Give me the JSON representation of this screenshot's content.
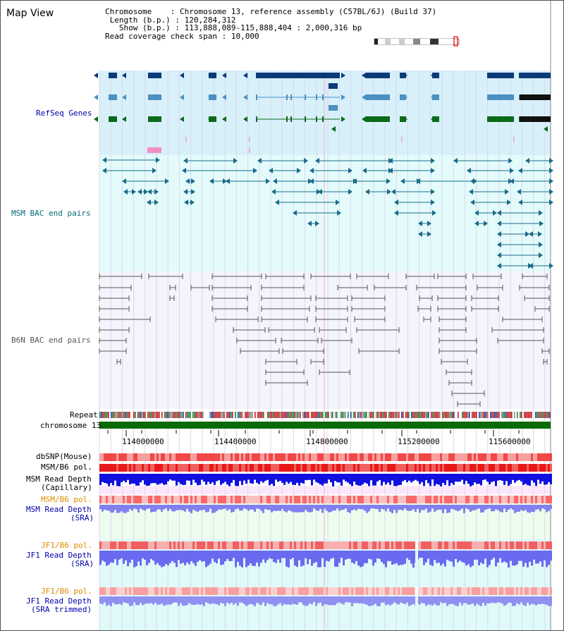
{
  "title": "Map View",
  "info": {
    "chromosome_label": "Chromosome",
    "chromosome_value": "Chromosome 13, reference assembly (C57BL/6J) (Build 37)",
    "length_label": "Length (b.p.)",
    "length_value": "120,284,312",
    "show_label": "Show (b.p.)",
    "show_value": "113,888,089-115,888,404 : 2,000,316 bp",
    "coverage_label": "Read coverage check span",
    "coverage_value": "10,000"
  },
  "tracks": {
    "refseq": "RefSeq Genes",
    "msm_bac": "MSM BAC end pairs",
    "b6n_bac": "B6N BAC end pairs",
    "repeat": "Repeat",
    "chromosome": "chromosome 13",
    "dbsnp": "dbSNP(Mouse)",
    "msm_b6_pol_1": "MSM/B6 pol.",
    "msm_read_depth_cap": "MSM Read Depth",
    "msm_read_depth_cap_sub": "(Capillary)",
    "msm_b6_pol_2": "MSM/B6 pol.",
    "msm_read_depth_sra": "MSM Read Depth",
    "msm_read_depth_sra_sub": "(SRA)",
    "jf1_b6_pol_1": "JF1/B6 pol.",
    "jf1_read_depth_sra": "JF1 Read Depth",
    "jf1_read_depth_sra_sub": "(SRA)",
    "jf1_b6_pol_2": "JF1/B6 pol.",
    "jf1_read_depth_trim": "JF1 Read Depth",
    "jf1_read_depth_trim_sub": "(SRA trimmed)"
  },
  "axis": {
    "ticks": [
      "114000000",
      "114400000",
      "114800000",
      "115200000",
      "115600000"
    ]
  },
  "colors": {
    "refseq_bg": "#d8f0fa",
    "msm_bg": "#e4fbfb",
    "b6n_bg": "#f4f4fc",
    "sra_bg": "#eefcee",
    "jf1_bg": "#e0fafa",
    "gene_dark": "#0a3a78",
    "gene_mid": "#4a90c0",
    "gene_green": "#0a6a1a",
    "bac_teal": "#1a6a8a",
    "bac_gray": "#555555",
    "chrom_green": "#0a6a0a",
    "label_blue": "#0000aa",
    "label_orange": "#e08a00",
    "label_teal": "#006a7a"
  }
}
